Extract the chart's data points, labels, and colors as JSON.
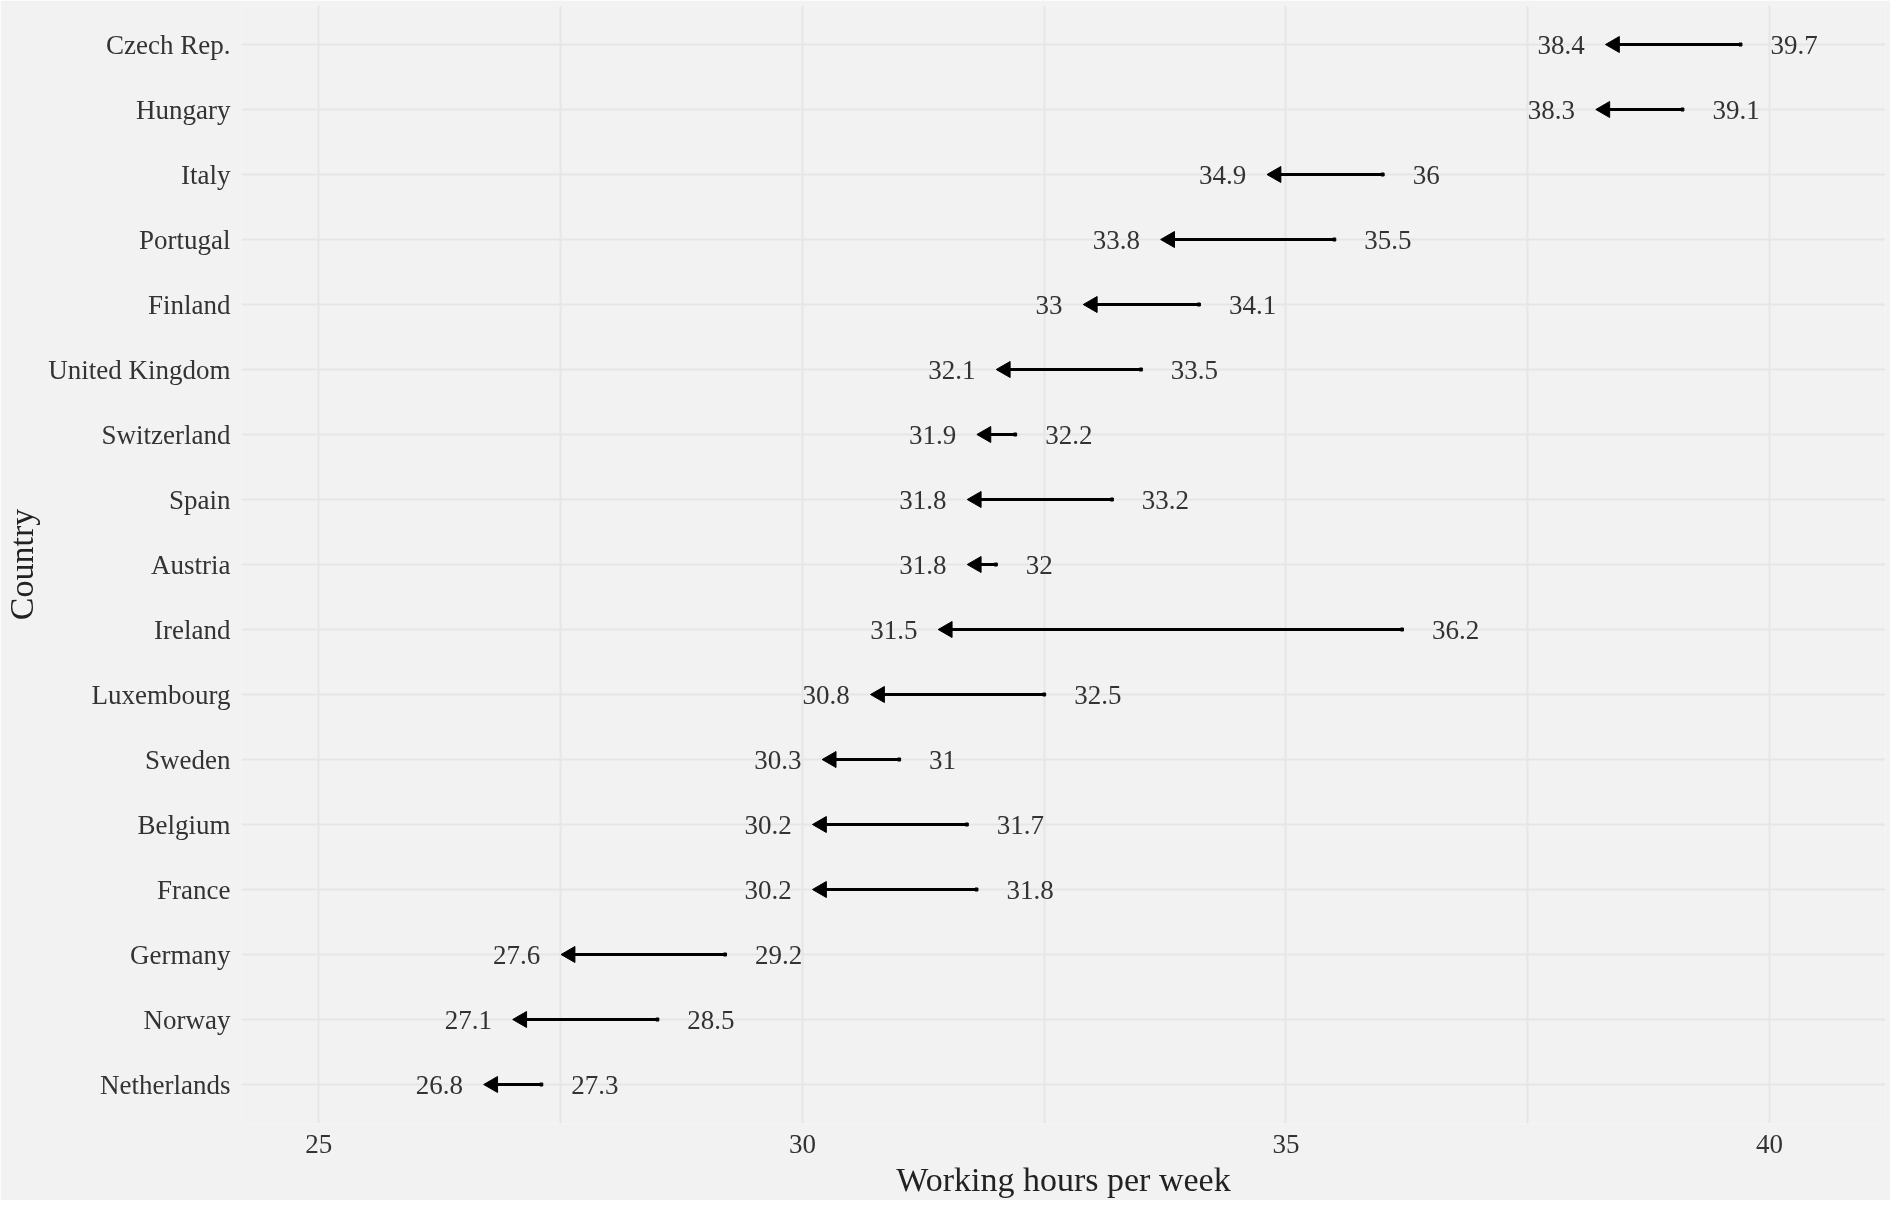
{
  "chart_data": {
    "type": "scatter",
    "orientation": "horizontal",
    "categories": [
      "Czech Rep.",
      "Hungary",
      "Italy",
      "Portugal",
      "Finland",
      "United Kingdom",
      "Switzerland",
      "Spain",
      "Austria",
      "Ireland",
      "Luxembourg",
      "Sweden",
      "Belgium",
      "France",
      "Germany",
      "Norway",
      "Netherlands"
    ],
    "series": [
      {
        "color": "#000000",
        "values": [
          39.7,
          39.1,
          36,
          35.5,
          34.1,
          33.5,
          32.2,
          33.2,
          32,
          36.2,
          32.5,
          31,
          31.7,
          31.8,
          29.2,
          28.5,
          27.3
        ]
      },
      {
        "color": "#000000",
        "values": [
          38.4,
          38.3,
          34.9,
          33.8,
          33,
          32.1,
          31.9,
          31.8,
          31.8,
          31.5,
          30.8,
          30.3,
          30.2,
          30.2,
          27.6,
          27.1,
          26.8
        ]
      }
    ],
    "xlim": [
      24.2,
      41.2
    ],
    "xticks": [
      25,
      {
        "value": 27.5,
        "label": null
      },
      30,
      {
        "value": 32.5,
        "label": null
      },
      35,
      {
        "value": 37.5,
        "label": null
      },
      40
    ],
    "xlabel": "Working hours per week",
    "ylabel": "Country",
    "grid": true,
    "data_labels": true
  }
}
